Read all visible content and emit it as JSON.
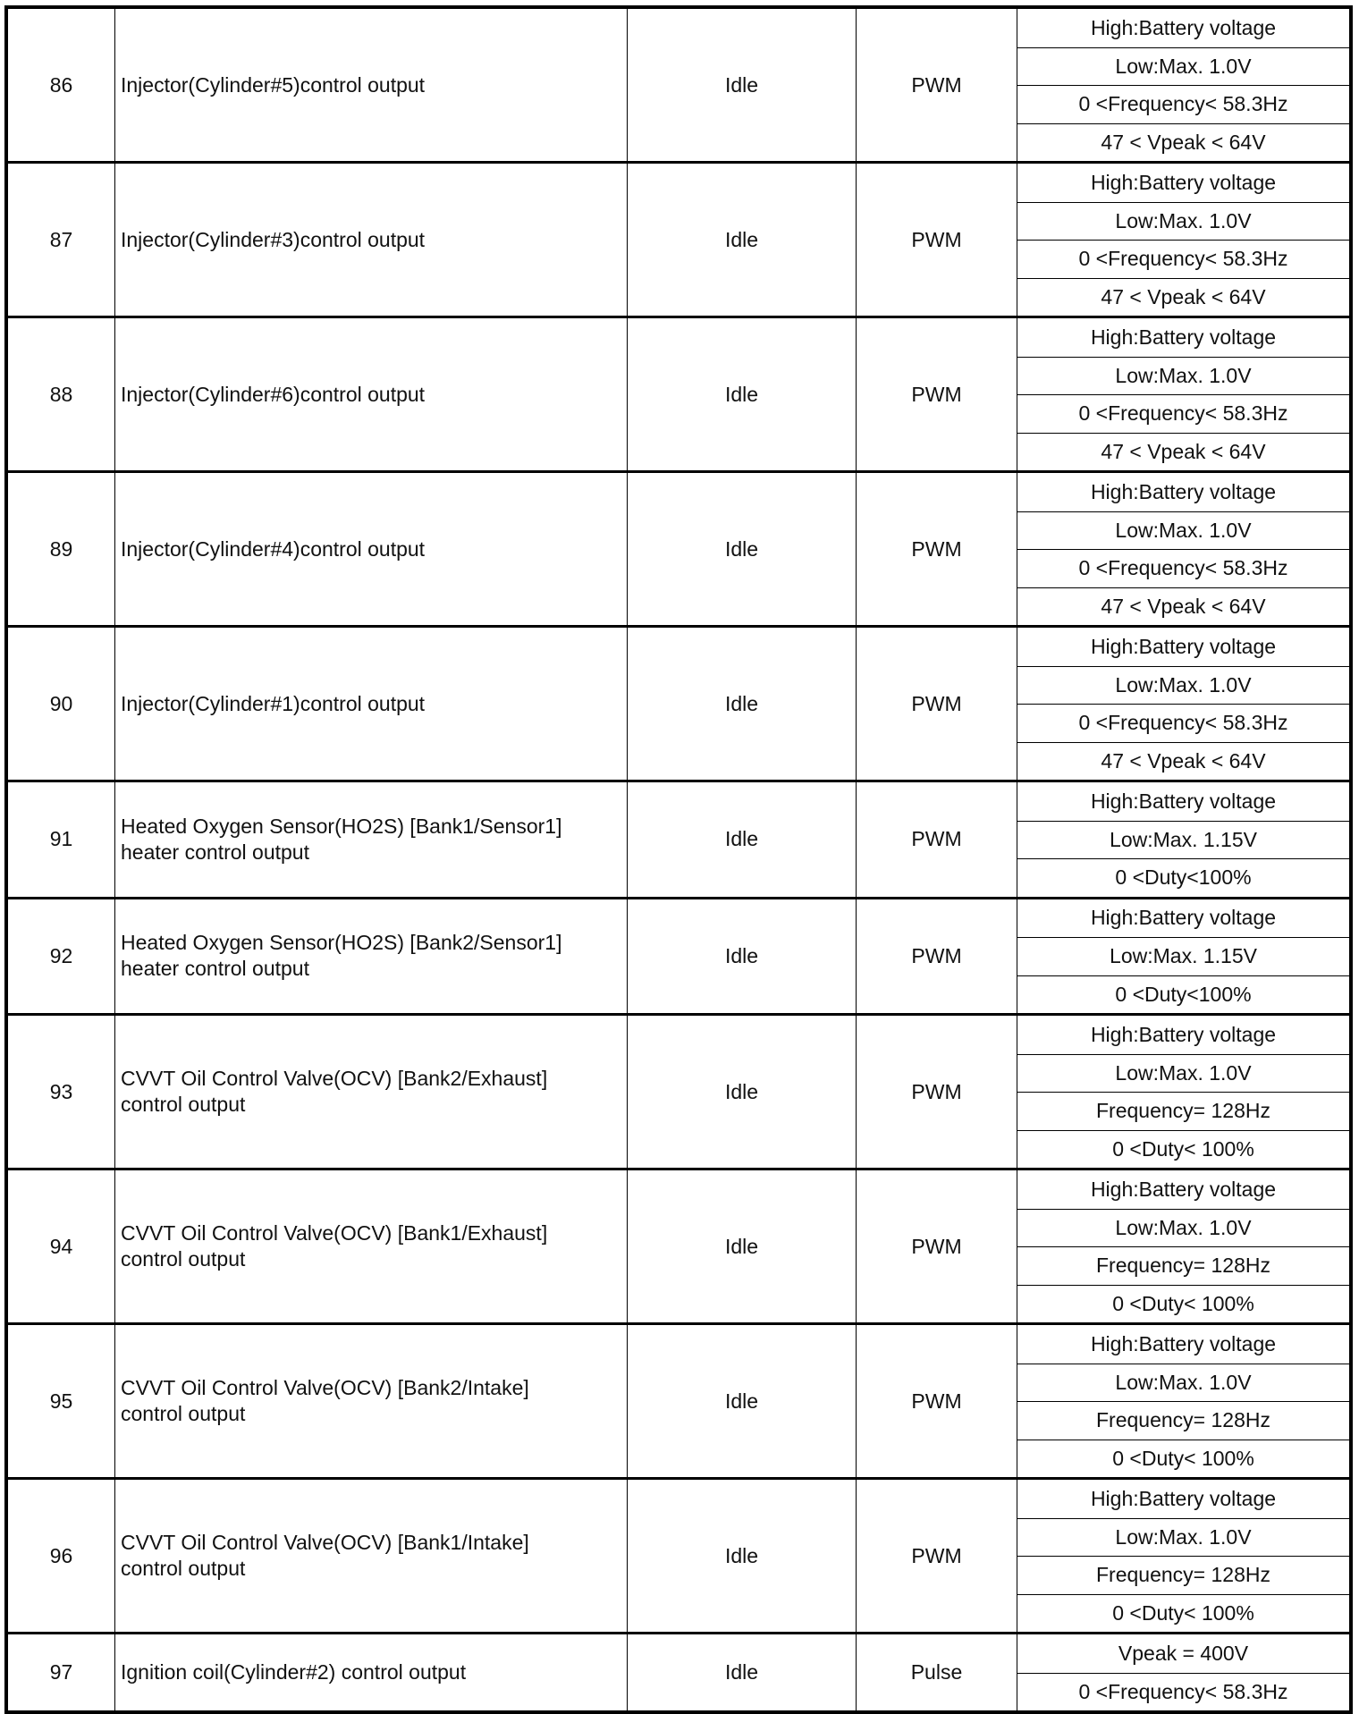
{
  "rows": [
    {
      "pin": "86",
      "desc": [
        "Injector(Cylinder#5)control output"
      ],
      "condition": "Idle",
      "type": "PWM",
      "specs": [
        "High:Battery voltage",
        "Low:Max. 1.0V",
        "0 <Frequency< 58.3Hz",
        "47 < Vpeak < 64V"
      ]
    },
    {
      "pin": "87",
      "desc": [
        "Injector(Cylinder#3)control output"
      ],
      "condition": "Idle",
      "type": "PWM",
      "specs": [
        "High:Battery voltage",
        "Low:Max. 1.0V",
        "0 <Frequency< 58.3Hz",
        "47 < Vpeak < 64V"
      ]
    },
    {
      "pin": "88",
      "desc": [
        "Injector(Cylinder#6)control output"
      ],
      "condition": "Idle",
      "type": "PWM",
      "specs": [
        "High:Battery voltage",
        "Low:Max. 1.0V",
        "0 <Frequency< 58.3Hz",
        "47 < Vpeak < 64V"
      ]
    },
    {
      "pin": "89",
      "desc": [
        "Injector(Cylinder#4)control output"
      ],
      "condition": "Idle",
      "type": "PWM",
      "specs": [
        "High:Battery voltage",
        "Low:Max. 1.0V",
        "0 <Frequency< 58.3Hz",
        "47 < Vpeak < 64V"
      ]
    },
    {
      "pin": "90",
      "desc": [
        "Injector(Cylinder#1)control output"
      ],
      "condition": "Idle",
      "type": "PWM",
      "specs": [
        "High:Battery voltage",
        "Low:Max. 1.0V",
        "0 <Frequency< 58.3Hz",
        "47 < Vpeak < 64V"
      ]
    },
    {
      "pin": "91",
      "desc": [
        "Heated Oxygen Sensor(HO2S) [Bank1/Sensor1]",
        "heater control output"
      ],
      "condition": "Idle",
      "type": "PWM",
      "specs": [
        "High:Battery voltage",
        "Low:Max. 1.15V",
        "0 <Duty<100%"
      ]
    },
    {
      "pin": "92",
      "desc": [
        "Heated Oxygen Sensor(HO2S) [Bank2/Sensor1]",
        "heater control output"
      ],
      "condition": "Idle",
      "type": "PWM",
      "specs": [
        "High:Battery voltage",
        "Low:Max. 1.15V",
        "0 <Duty<100%"
      ]
    },
    {
      "pin": "93",
      "desc": [
        "CVVT Oil Control Valve(OCV) [Bank2/Exhaust]",
        "control output"
      ],
      "condition": "Idle",
      "type": "PWM",
      "specs": [
        "High:Battery voltage",
        "Low:Max. 1.0V",
        "Frequency= 128Hz",
        "0 <Duty< 100%"
      ]
    },
    {
      "pin": "94",
      "desc": [
        "CVVT Oil Control Valve(OCV) [Bank1/Exhaust]",
        "control output"
      ],
      "condition": "Idle",
      "type": "PWM",
      "specs": [
        "High:Battery voltage",
        "Low:Max. 1.0V",
        "Frequency= 128Hz",
        "0 <Duty< 100%"
      ]
    },
    {
      "pin": "95",
      "desc": [
        "CVVT Oil Control Valve(OCV) [Bank2/Intake]",
        "control output"
      ],
      "condition": "Idle",
      "type": "PWM",
      "specs": [
        "High:Battery voltage",
        "Low:Max. 1.0V",
        "Frequency= 128Hz",
        "0 <Duty< 100%"
      ]
    },
    {
      "pin": "96",
      "desc": [
        "CVVT Oil Control Valve(OCV) [Bank1/Intake]",
        "control output"
      ],
      "condition": "Idle",
      "type": "PWM",
      "specs": [
        "High:Battery voltage",
        "Low:Max. 1.0V",
        "Frequency= 128Hz",
        "0 <Duty< 100%"
      ]
    },
    {
      "pin": "97",
      "desc": [
        "Ignition coil(Cylinder#2) control output"
      ],
      "condition": "Idle",
      "type": "Pulse",
      "specs": [
        "Vpeak = 400V",
        "0 <Frequency< 58.3Hz"
      ]
    }
  ]
}
